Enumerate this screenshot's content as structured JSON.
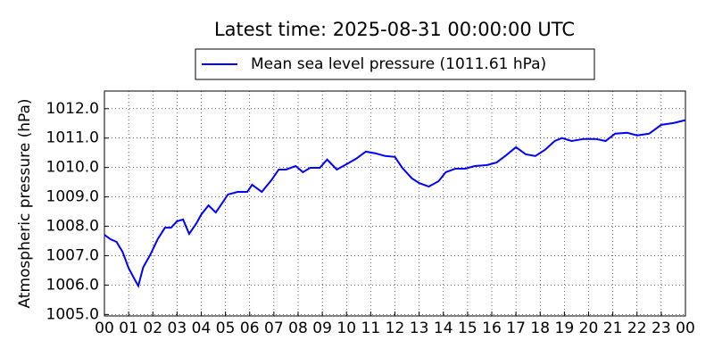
{
  "chart_data": {
    "type": "line",
    "title": "Latest time: 2025-08-31 00:00:00 UTC",
    "ylabel": "Atmospheric pressure (hPa)",
    "grid": true,
    "legend": "upper center",
    "xlim": [
      0,
      24
    ],
    "ylim": [
      1004.95,
      1012.6
    ],
    "xticks": [
      {
        "value": 0,
        "label": "00"
      },
      {
        "value": 1,
        "label": "01"
      },
      {
        "value": 2,
        "label": "02"
      },
      {
        "value": 3,
        "label": "03"
      },
      {
        "value": 4,
        "label": "04"
      },
      {
        "value": 5,
        "label": "05"
      },
      {
        "value": 6,
        "label": "06"
      },
      {
        "value": 7,
        "label": "07"
      },
      {
        "value": 8,
        "label": "08"
      },
      {
        "value": 9,
        "label": "09"
      },
      {
        "value": 10,
        "label": "10"
      },
      {
        "value": 11,
        "label": "11"
      },
      {
        "value": 12,
        "label": "12"
      },
      {
        "value": 13,
        "label": "13"
      },
      {
        "value": 14,
        "label": "14"
      },
      {
        "value": 15,
        "label": "15"
      },
      {
        "value": 16,
        "label": "16"
      },
      {
        "value": 17,
        "label": "17"
      },
      {
        "value": 18,
        "label": "18"
      },
      {
        "value": 19,
        "label": "19"
      },
      {
        "value": 20,
        "label": "20"
      },
      {
        "value": 21,
        "label": "21"
      },
      {
        "value": 22,
        "label": "22"
      },
      {
        "value": 23,
        "label": "23"
      },
      {
        "value": 24,
        "label": "00"
      }
    ],
    "yticks": [
      {
        "value": 1005,
        "label": "1005.0"
      },
      {
        "value": 1006,
        "label": "1006.0"
      },
      {
        "value": 1007,
        "label": "1007.0"
      },
      {
        "value": 1008,
        "label": "1008.0"
      },
      {
        "value": 1009,
        "label": "1009.0"
      },
      {
        "value": 1010,
        "label": "1010.0"
      },
      {
        "value": 1011,
        "label": "1011.0"
      },
      {
        "value": 1012,
        "label": "1012.0"
      }
    ],
    "x": [
      0,
      0.25,
      0.5,
      0.75,
      1.0,
      1.25,
      1.4,
      1.6,
      1.9,
      2.2,
      2.5,
      2.75,
      3.0,
      3.25,
      3.5,
      3.8,
      4.0,
      4.3,
      4.6,
      4.8,
      5.1,
      5.5,
      5.9,
      6.1,
      6.5,
      6.9,
      7.2,
      7.5,
      7.9,
      8.2,
      8.5,
      8.9,
      9.2,
      9.6,
      10.0,
      10.4,
      10.8,
      11.2,
      11.6,
      12.0,
      12.3,
      12.7,
      13.0,
      13.4,
      13.8,
      14.1,
      14.5,
      14.9,
      15.3,
      15.8,
      16.2,
      16.6,
      17.0,
      17.4,
      17.8,
      18.2,
      18.6,
      18.9,
      19.3,
      19.8,
      20.3,
      20.7,
      21.1,
      21.6,
      22.0,
      22.5,
      23.0,
      23.5,
      24
    ],
    "series": [
      {
        "name": "Mean sea level pressure (1011.61 hPa)",
        "color": "#0000ff",
        "values": [
          1007.71,
          1007.56,
          1007.47,
          1007.13,
          1006.58,
          1006.19,
          1005.97,
          1006.6,
          1007.04,
          1007.56,
          1007.95,
          1007.95,
          1008.17,
          1008.23,
          1007.74,
          1008.1,
          1008.4,
          1008.71,
          1008.47,
          1008.71,
          1009.08,
          1009.17,
          1009.17,
          1009.41,
          1009.17,
          1009.57,
          1009.93,
          1009.93,
          1010.05,
          1009.84,
          1009.99,
          1009.99,
          1010.27,
          1009.93,
          1010.11,
          1010.3,
          1010.54,
          1010.48,
          1010.39,
          1010.36,
          1009.99,
          1009.63,
          1009.47,
          1009.35,
          1009.53,
          1009.84,
          1009.96,
          1009.96,
          1010.05,
          1010.08,
          1010.17,
          1010.42,
          1010.69,
          1010.45,
          1010.39,
          1010.6,
          1010.9,
          1011.0,
          1010.9,
          1010.97,
          1010.97,
          1010.9,
          1011.15,
          1011.18,
          1011.09,
          1011.15,
          1011.45,
          1011.51,
          1011.61
        ]
      }
    ]
  }
}
